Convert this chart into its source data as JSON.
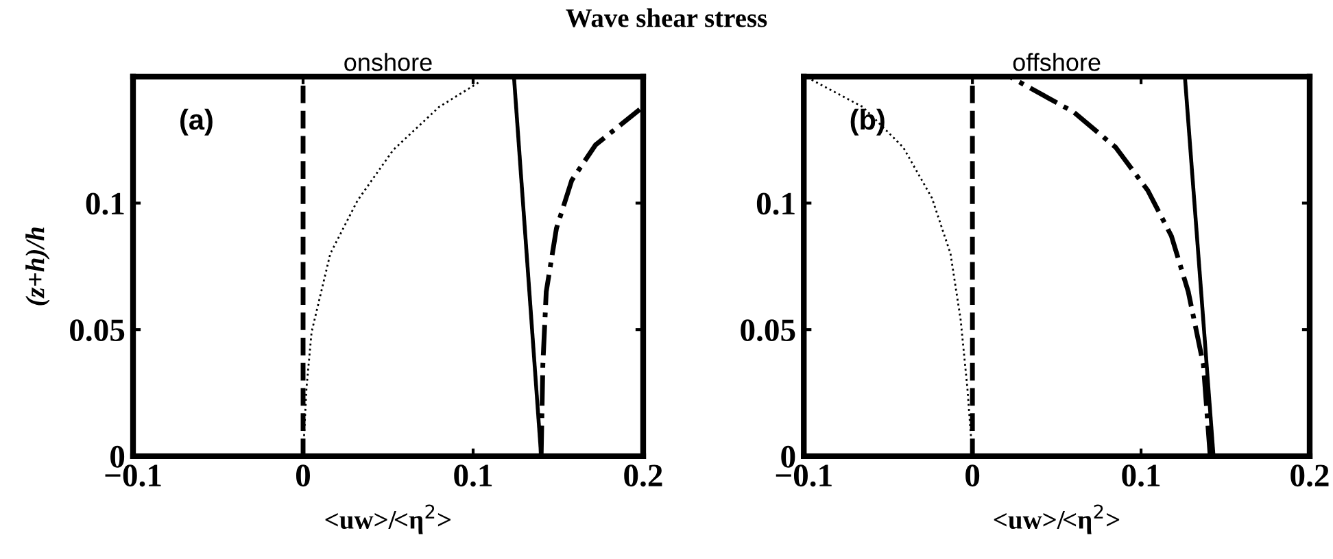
{
  "chart_data": [
    {
      "type": "line",
      "title": "Wave shear stress",
      "subtitle": "onshore",
      "xlabel": "<uw>/<η$^{2}$>",
      "ylabel": "(z+h)/h",
      "annotations": [
        "(a)"
      ],
      "xlim": [
        -0.1,
        0.2
      ],
      "ylim": [
        0,
        0.15
      ],
      "xticks": [
        {
          "value": -0.1,
          "label": "−0.1"
        },
        0,
        0.1,
        0.2
      ],
      "yticks": [
        0,
        0.05,
        0.1
      ],
      "grid": false,
      "legend": false,
      "ref_lines": [
        {
          "axis": "x",
          "value": 0,
          "color": "#000000",
          "line_style": "dashed"
        }
      ],
      "series": [
        {
          "color": "#000000",
          "line_style": "solid",
          "x": [
            0.14,
            0.124
          ],
          "values": [
            0,
            0.15
          ]
        },
        {
          "color": "#000000",
          "line_style": "dotted",
          "x": [
            0,
            0.002,
            0.005,
            0.016,
            0.032,
            0.053,
            0.08,
            0.104
          ],
          "values": [
            0,
            0.027,
            0.049,
            0.08,
            0.101,
            0.121,
            0.138,
            0.148
          ]
        },
        {
          "color": "#000000",
          "line_style": "dashdot",
          "x": [
            0.14,
            0.141,
            0.143,
            0.149,
            0.158,
            0.172,
            0.198
          ],
          "values": [
            0,
            0.036,
            0.065,
            0.09,
            0.109,
            0.123,
            0.137
          ]
        }
      ]
    },
    {
      "type": "line",
      "subtitle": "offshore",
      "xlabel": "<uw>/<η$^{2}$>",
      "annotations": [
        "(b)"
      ],
      "xlim": [
        -0.1,
        0.2
      ],
      "ylim": [
        0,
        0.15
      ],
      "xticks": [
        {
          "value": -0.1,
          "label": "−0.1"
        },
        0,
        0.1,
        0.2
      ],
      "yticks": [
        0,
        0.05,
        0.1
      ],
      "grid": false,
      "legend": false,
      "ref_lines": [
        {
          "axis": "x",
          "value": 0,
          "color": "#000000",
          "line_style": "dashed"
        }
      ],
      "series": [
        {
          "color": "#000000",
          "line_style": "solid",
          "x": [
            0.143,
            0.126
          ],
          "values": [
            0,
            0.15
          ]
        },
        {
          "color": "#000000",
          "line_style": "dotted",
          "x": [
            0,
            -0.003,
            -0.007,
            -0.013,
            -0.024,
            -0.041,
            -0.065,
            -0.099
          ],
          "values": [
            0,
            0.027,
            0.054,
            0.08,
            0.102,
            0.122,
            0.138,
            0.15
          ]
        },
        {
          "color": "#000000",
          "line_style": "dashdot",
          "x": [
            0.141,
            0.137,
            0.128,
            0.118,
            0.104,
            0.085,
            0.06,
            0.022
          ],
          "values": [
            0,
            0.036,
            0.065,
            0.087,
            0.105,
            0.122,
            0.136,
            0.15
          ]
        }
      ]
    }
  ]
}
